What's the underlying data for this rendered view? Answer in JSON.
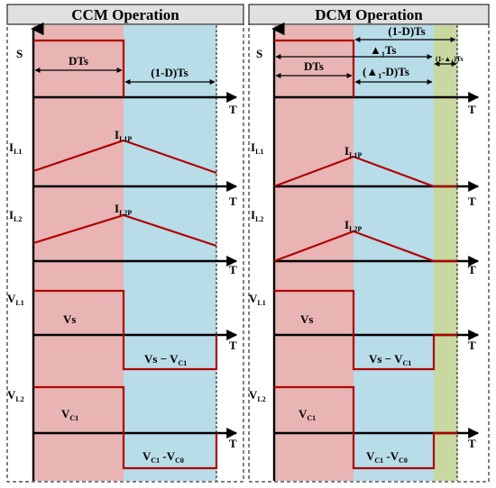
{
  "ccm": {
    "title": "CCM Operation",
    "s_label": "S",
    "dts_label": "DTs",
    "one_minus_d_label": "(1-D)Ts",
    "t_label": "T",
    "il1_label": "I",
    "il1_sub": "L1",
    "il1p_label": "I",
    "il1p_sub": "L1P",
    "il2_label": "I",
    "il2_sub": "L2",
    "il2p_label": "I",
    "il2p_sub": "L2P",
    "vl1_label": "V",
    "vl1_sub": "L1",
    "vs_label": "Vs",
    "vs_minus_vc1_label": "Vs − V",
    "vs_minus_vc1_sub": "C1",
    "vl2_label": "V",
    "vl2_sub": "L2",
    "vc1_label": "V",
    "vc1_sub": "C1",
    "vc1_minus_vc0_label_a": "V",
    "vc1_minus_vc0_sub_a": "C1",
    "vc1_minus_vc0_label_b": " -V",
    "vc1_minus_vc0_sub_b": "C0"
  },
  "dcm": {
    "title": "DCM Operation",
    "s_label": "S",
    "one_minus_d_label": "(1-D)Ts",
    "delta1_label": "▲",
    "delta1_sub": "1",
    "delta1_tail": "Ts",
    "dts_label": "DTs",
    "delta1_minus_d_label": "(▲",
    "delta1_minus_d_sub": "1",
    "delta1_minus_d_tail": "-D)Ts",
    "one_minus_delta1_label": "(1-▲",
    "one_minus_delta1_sub": "1",
    "one_minus_delta1_tail": ")Ts",
    "t_label": "T",
    "il1_label": "I",
    "il1_sub": "L1",
    "il1p_label": "I",
    "il1p_sub": "L1P",
    "il2_label": "I",
    "il2_sub": "L2",
    "il2p_label": "I",
    "il2p_sub": "L2P",
    "vl1_label": "V",
    "vl1_sub": "L1",
    "vs_label": "Vs",
    "vs_minus_vc1_label": "Vs − V",
    "vs_minus_vc1_sub": "C1",
    "vl2_label": "V",
    "vl2_sub": "L2",
    "vc1_label": "V",
    "vc1_sub": "C1",
    "vc1_minus_vc0_label_a": "V",
    "vc1_minus_vc0_sub_a": "C1",
    "vc1_minus_vc0_label_b": " -V",
    "vc1_minus_vc0_sub_b": "C0"
  },
  "colors": {
    "header_bg": "#e0e0e0",
    "on_phase": "#e8b4b4",
    "off_phase": "#b8dce8",
    "idle_phase": "#c8d8a0",
    "waveform": "#b00000"
  }
}
